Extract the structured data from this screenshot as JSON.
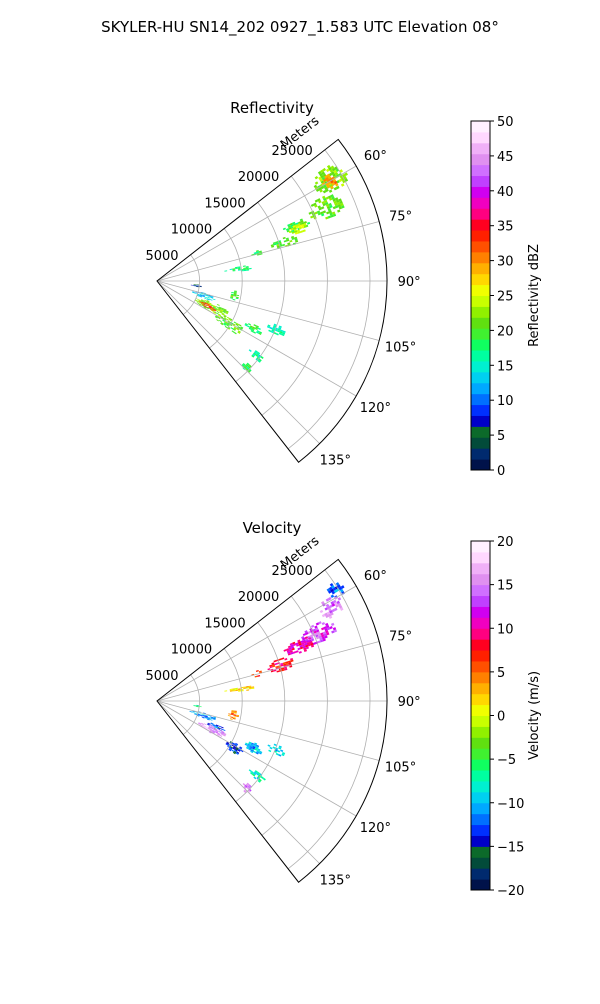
{
  "figure": {
    "suptitle": "SKYLER-HU  SN14_202  0927_1.583 UTC Elevation 08°"
  },
  "chart_data": [
    {
      "type": "polar-sector",
      "title": "Reflectivity",
      "radius_label": "Meters",
      "radius_ticks": [
        5000,
        10000,
        15000,
        20000,
        25000
      ],
      "radius_tick_labels": [
        "5000",
        "10000",
        "15000",
        "20000",
        "25000"
      ],
      "rmax": 27000,
      "azimuth_range": [
        52,
        142
      ],
      "azimuth_ticks": [
        60,
        75,
        90,
        105,
        120,
        135
      ],
      "azimuth_tick_labels": [
        "60°",
        "75°",
        "90°",
        "105°",
        "120°",
        "135°"
      ],
      "grid": true,
      "colorbar": {
        "label": "Reflectivity dBZ",
        "min": 0,
        "max": 50,
        "ticks": [
          0,
          5,
          10,
          15,
          20,
          25,
          30,
          35,
          40,
          45,
          50
        ],
        "tick_labels": [
          "0",
          "5",
          "10",
          "15",
          "20",
          "25",
          "30",
          "35",
          "40",
          "45",
          "50"
        ],
        "colors": [
          "#00124a",
          "#002a6e",
          "#024b3a",
          "#0c6a2a",
          "#0000c8",
          "#0030ff",
          "#0070ff",
          "#00a8ff",
          "#00d0f0",
          "#00f0d0",
          "#00ffa0",
          "#10ff60",
          "#40f030",
          "#60e010",
          "#90f000",
          "#c8ff00",
          "#f0ff00",
          "#ffd800",
          "#ffb000",
          "#ff8000",
          "#ff5000",
          "#ff2000",
          "#ff0020",
          "#ff0080",
          "#f000c0",
          "#d000f0",
          "#c040ff",
          "#d070ff",
          "#e090f0",
          "#f0b0f8",
          "#ffd8ff",
          "#fff0ff"
        ]
      },
      "regions": [
        {
          "az": [
            56,
            63
          ],
          "r": [
            21500,
            25500
          ],
          "value": 22
        },
        {
          "az": [
            58,
            62
          ],
          "r": [
            22500,
            24000
          ],
          "value": 30
        },
        {
          "az": [
            63,
            70
          ],
          "r": [
            19500,
            23500
          ],
          "value": 21
        },
        {
          "az": [
            66,
            70
          ],
          "r": [
            16000,
            19000
          ],
          "value": 19
        },
        {
          "az": [
            68,
            71
          ],
          "r": [
            16500,
            18500
          ],
          "value": 25
        },
        {
          "az": [
            71,
            75
          ],
          "r": [
            14000,
            17000
          ],
          "value": 20
        },
        {
          "az": [
            73,
            76
          ],
          "r": [
            11500,
            12500
          ],
          "value": 19
        },
        {
          "az": [
            80,
            83
          ],
          "r": [
            8000,
            11500
          ],
          "value": 17
        },
        {
          "az": [
            95,
            98
          ],
          "r": [
            4000,
            5000
          ],
          "value": 6
        },
        {
          "az": [
            97,
            104
          ],
          "r": [
            8500,
            9500
          ],
          "value": 20
        },
        {
          "az": [
            104,
            110
          ],
          "r": [
            4000,
            7000
          ],
          "value": 13
        },
        {
          "az": [
            111,
            120
          ],
          "r": [
            5000,
            9000
          ],
          "value": 22
        },
        {
          "az": [
            114,
            118
          ],
          "r": [
            5500,
            7500
          ],
          "value": 33
        },
        {
          "az": [
            117,
            124
          ],
          "r": [
            8000,
            11500
          ],
          "value": 21
        },
        {
          "az": [
            114,
            118
          ],
          "r": [
            11500,
            13500
          ],
          "value": 18
        },
        {
          "az": [
            110,
            114
          ],
          "r": [
            14000,
            16000
          ],
          "value": 16
        },
        {
          "az": [
            125,
            128
          ],
          "r": [
            13500,
            15500
          ],
          "value": 16
        },
        {
          "az": [
            132,
            136
          ],
          "r": [
            14000,
            15000
          ],
          "value": 18
        }
      ]
    },
    {
      "type": "polar-sector",
      "title": "Velocity",
      "radius_label": "Meters",
      "radius_ticks": [
        5000,
        10000,
        15000,
        20000,
        25000
      ],
      "radius_tick_labels": [
        "5000",
        "10000",
        "15000",
        "20000",
        "25000"
      ],
      "rmax": 27000,
      "azimuth_range": [
        52,
        142
      ],
      "azimuth_ticks": [
        60,
        75,
        90,
        105,
        120,
        135
      ],
      "azimuth_tick_labels": [
        "60°",
        "75°",
        "90°",
        "105°",
        "120°",
        "135°"
      ],
      "grid": true,
      "colorbar": {
        "label": "Velocity (m/s)",
        "min": -20,
        "max": 20,
        "ticks": [
          -20,
          -15,
          -10,
          -5,
          0,
          5,
          10,
          15,
          20
        ],
        "tick_labels": [
          "−20",
          "−15",
          "−10",
          "−5",
          "0",
          "5",
          "10",
          "15",
          "20"
        ],
        "colors": [
          "#00124a",
          "#002a6e",
          "#024b3a",
          "#0c6a2a",
          "#0000c8",
          "#0030ff",
          "#0070ff",
          "#00a8ff",
          "#00d0f0",
          "#00f0d0",
          "#00ffa0",
          "#10ff60",
          "#40f030",
          "#60e010",
          "#90f000",
          "#c8ff00",
          "#f0ff00",
          "#ffd800",
          "#ffb000",
          "#ff8000",
          "#ff5000",
          "#ff2000",
          "#ff0020",
          "#ff0080",
          "#f000c0",
          "#d000f0",
          "#c040ff",
          "#d070ff",
          "#e090f0",
          "#f0b0f8",
          "#ffd8ff",
          "#fff0ff"
        ]
      },
      "regions": [
        {
          "az": [
            56,
            60
          ],
          "r": [
            23500,
            25500
          ],
          "value": -12
        },
        {
          "az": [
            59,
            64
          ],
          "r": [
            21500,
            24500
          ],
          "value": 15
        },
        {
          "az": [
            64,
            70
          ],
          "r": [
            18500,
            22500
          ],
          "value": 13
        },
        {
          "az": [
            66,
            71
          ],
          "r": [
            16000,
            19500
          ],
          "value": 10
        },
        {
          "az": [
            71,
            76
          ],
          "r": [
            13500,
            16500
          ],
          "value": 8
        },
        {
          "az": [
            73,
            76
          ],
          "r": [
            11500,
            12500
          ],
          "value": 7
        },
        {
          "az": [
            80,
            83
          ],
          "r": [
            8000,
            11500
          ],
          "value": 2
        },
        {
          "az": [
            95,
            98
          ],
          "r": [
            4000,
            5000
          ],
          "value": -6
        },
        {
          "az": [
            97,
            104
          ],
          "r": [
            8500,
            9500
          ],
          "value": 4
        },
        {
          "az": [
            104,
            110
          ],
          "r": [
            4000,
            7000
          ],
          "value": -11
        },
        {
          "az": [
            111,
            117
          ],
          "r": [
            6500,
            8500
          ],
          "value": -13
        },
        {
          "az": [
            114,
            121
          ],
          "r": [
            5500,
            9000
          ],
          "value": 16
        },
        {
          "az": [
            118,
            124
          ],
          "r": [
            9500,
            11500
          ],
          "value": -14
        },
        {
          "az": [
            113,
            118
          ],
          "r": [
            11500,
            13500
          ],
          "value": -10
        },
        {
          "az": [
            110,
            114
          ],
          "r": [
            14000,
            16000
          ],
          "value": -9
        },
        {
          "az": [
            125,
            128
          ],
          "r": [
            13500,
            15500
          ],
          "value": -8
        },
        {
          "az": [
            132,
            136
          ],
          "r": [
            14000,
            15000
          ],
          "value": 15
        }
      ]
    }
  ]
}
